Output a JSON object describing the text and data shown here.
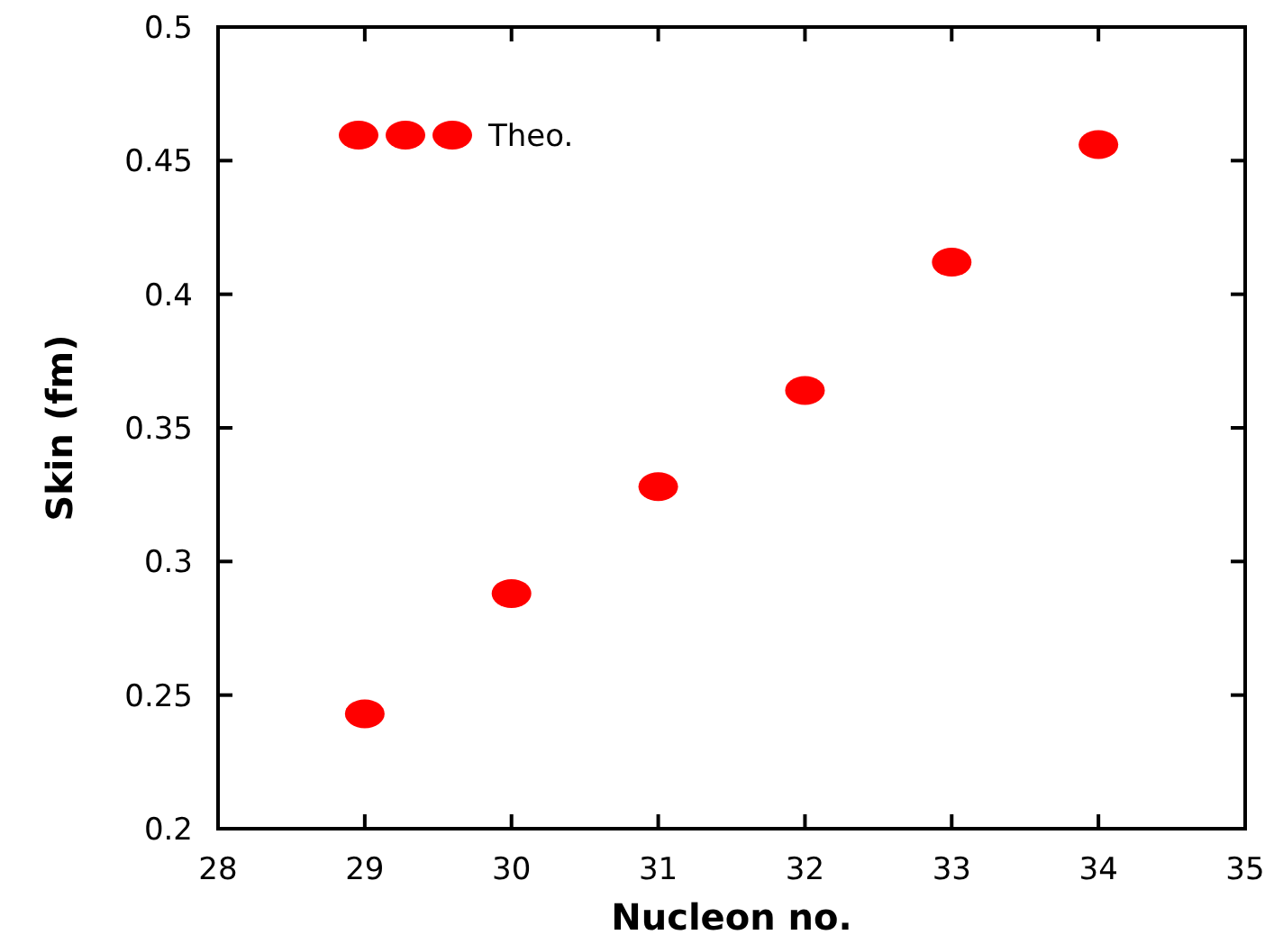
{
  "chart_data": {
    "type": "scatter",
    "xlabel": "Nucleon no.",
    "ylabel": "Skin (fm)",
    "x": [
      29,
      30,
      31,
      32,
      33,
      34
    ],
    "series": [
      {
        "name": "Theo.",
        "color": "#ff0000",
        "values": [
          0.243,
          0.288,
          0.328,
          0.364,
          0.412,
          0.456
        ]
      }
    ],
    "xlim": [
      28,
      35
    ],
    "xticks": [
      28,
      29,
      30,
      31,
      32,
      33,
      34,
      35
    ],
    "ylim": [
      0.2,
      0.5
    ],
    "yticks": [
      0.2,
      0.25,
      0.3,
      0.35,
      0.4,
      0.45,
      0.5
    ],
    "grid": false,
    "legend": "top left",
    "marker": "circle"
  }
}
